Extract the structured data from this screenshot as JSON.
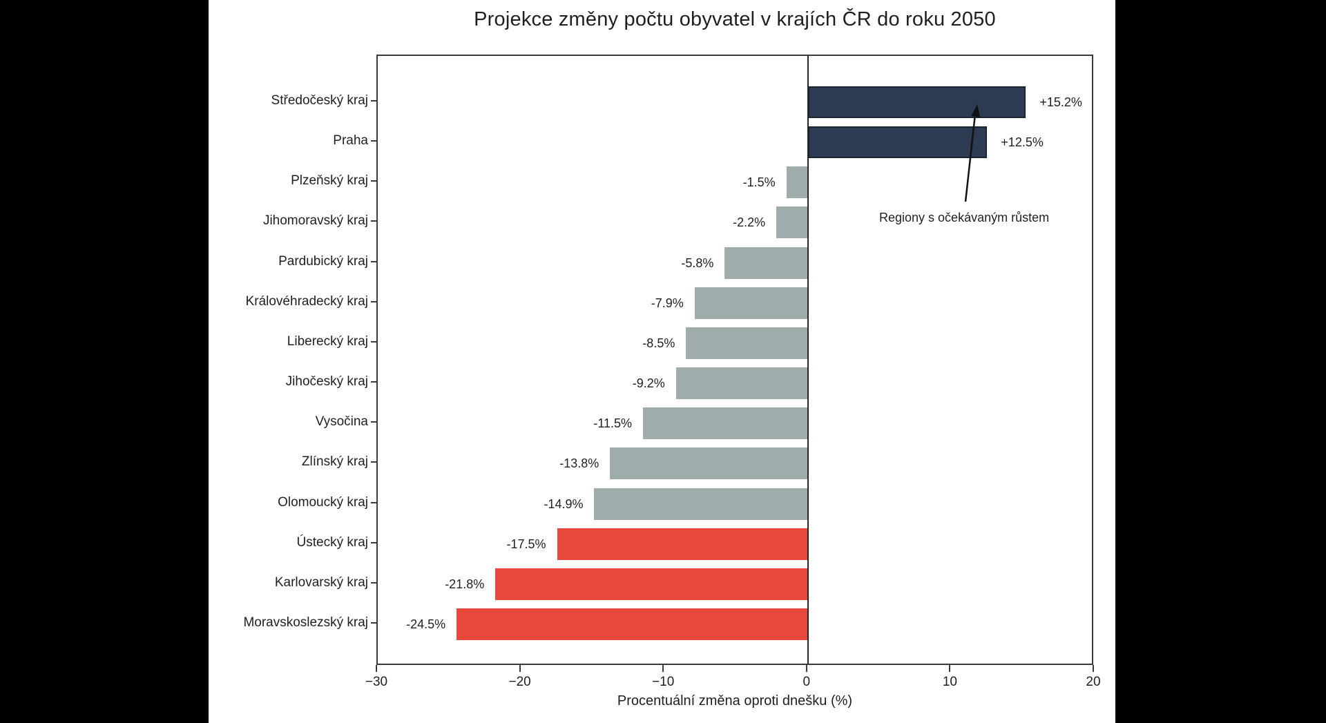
{
  "page": {
    "background": "#000000",
    "panel_background": "#ffffff"
  },
  "chart_data": {
    "type": "bar",
    "orientation": "horizontal",
    "title": "Projekce změny počtu obyvatel v krajích ČR do roku 2050",
    "xlabel": "Procentuální změna oproti dnešku (%)",
    "ylabel": "",
    "xlim": [
      -30,
      20
    ],
    "grid": false,
    "legend_position": "none",
    "x_ticks": [
      {
        "value": -30,
        "label": "−30"
      },
      {
        "value": -20,
        "label": "−20"
      },
      {
        "value": -10,
        "label": "−10"
      },
      {
        "value": 0,
        "label": "0"
      },
      {
        "value": 10,
        "label": "10"
      },
      {
        "value": 20,
        "label": "20"
      }
    ],
    "bars": [
      {
        "category": "Středočeský kraj",
        "value": 15.2,
        "label": "+15.2%",
        "color": "growth"
      },
      {
        "category": "Praha",
        "value": 12.5,
        "label": "+12.5%",
        "color": "growth"
      },
      {
        "category": "Plzeňský kraj",
        "value": -1.5,
        "label": "-1.5%",
        "color": "decline"
      },
      {
        "category": "Jihomoravský kraj",
        "value": -2.2,
        "label": "-2.2%",
        "color": "decline"
      },
      {
        "category": "Pardubický kraj",
        "value": -5.8,
        "label": "-5.8%",
        "color": "decline"
      },
      {
        "category": "Královéhradecký kraj",
        "value": -7.9,
        "label": "-7.9%",
        "color": "decline"
      },
      {
        "category": "Liberecký kraj",
        "value": -8.5,
        "label": "-8.5%",
        "color": "decline"
      },
      {
        "category": "Jihočeský kraj",
        "value": -9.2,
        "label": "-9.2%",
        "color": "decline"
      },
      {
        "category": "Vysočina",
        "value": -11.5,
        "label": "-11.5%",
        "color": "decline"
      },
      {
        "category": "Zlínský kraj",
        "value": -13.8,
        "label": "-13.8%",
        "color": "decline"
      },
      {
        "category": "Olomoucký kraj",
        "value": -14.9,
        "label": "-14.9%",
        "color": "decline"
      },
      {
        "category": "Ústecký kraj",
        "value": -17.5,
        "label": "-17.5%",
        "color": "decline_strong"
      },
      {
        "category": "Karlovarský kraj",
        "value": -21.8,
        "label": "-21.8%",
        "color": "decline_strong"
      },
      {
        "category": "Moravskoslezský kraj",
        "value": -24.5,
        "label": "-24.5%",
        "color": "decline_strong"
      }
    ],
    "annotation": {
      "text": "Regiony s očekávaným růstem",
      "points_to": "Středočeský kraj"
    },
    "colors": {
      "growth": "#2d3c52",
      "growth_border": "#1a2431",
      "decline": "#a0acac",
      "decline_strong": "#e8483c",
      "axis": "#3a3a3a",
      "zero_line": "#262626",
      "text": "#1f1f1f"
    }
  }
}
